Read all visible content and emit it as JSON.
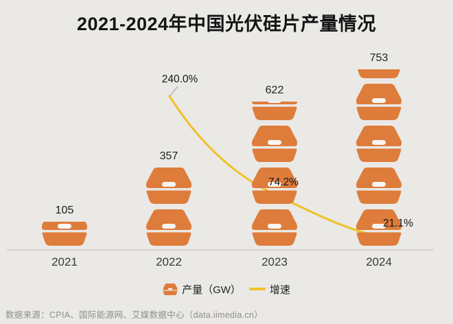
{
  "title": "2021-2024年中国光伏硅片产量情况",
  "chart_data": {
    "type": "bar",
    "subtype": "pictogram-bar-with-growth-line",
    "categories": [
      "2021",
      "2022",
      "2023",
      "2024"
    ],
    "series": [
      {
        "name": "产量（GW）",
        "type": "pictogram-bar",
        "unit": "GW",
        "values": [
          105,
          357,
          622,
          753
        ],
        "value_labels": [
          "105",
          "357",
          "622",
          "753"
        ],
        "icon": "wafer-box-icon",
        "icon_stacks": [
          {
            "full": 0,
            "partial": 0.66
          },
          {
            "full": 2,
            "partial": 0
          },
          {
            "full": 3,
            "partial": 0.51
          },
          {
            "full": 4,
            "partial": 0.24
          }
        ]
      },
      {
        "name": "增速",
        "type": "line",
        "values": [
          null,
          240.0,
          74.2,
          21.1
        ],
        "value_labels": [
          "",
          "240.0%",
          "74.2%",
          "21.1%"
        ]
      }
    ],
    "legend_position": "bottom",
    "grid": false,
    "xlabel": "",
    "ylabel": ""
  },
  "legend": {
    "production_label": "产量（GW）",
    "growth_label": "增速"
  },
  "source": "数据来源：CPIA、国际能源网、艾媒数据中心（data.iimedia.cn）",
  "colors": {
    "background": "#EAE9E6",
    "bar_orange": "#DE7C3B",
    "line_yellow": "#F0C22E",
    "text_dark": "#141414",
    "axis_line": "#D6D4D1",
    "source_text": "#8F8E8B",
    "icon_slot": "#F8F6F2",
    "leader_gray": "#ACACAA"
  }
}
